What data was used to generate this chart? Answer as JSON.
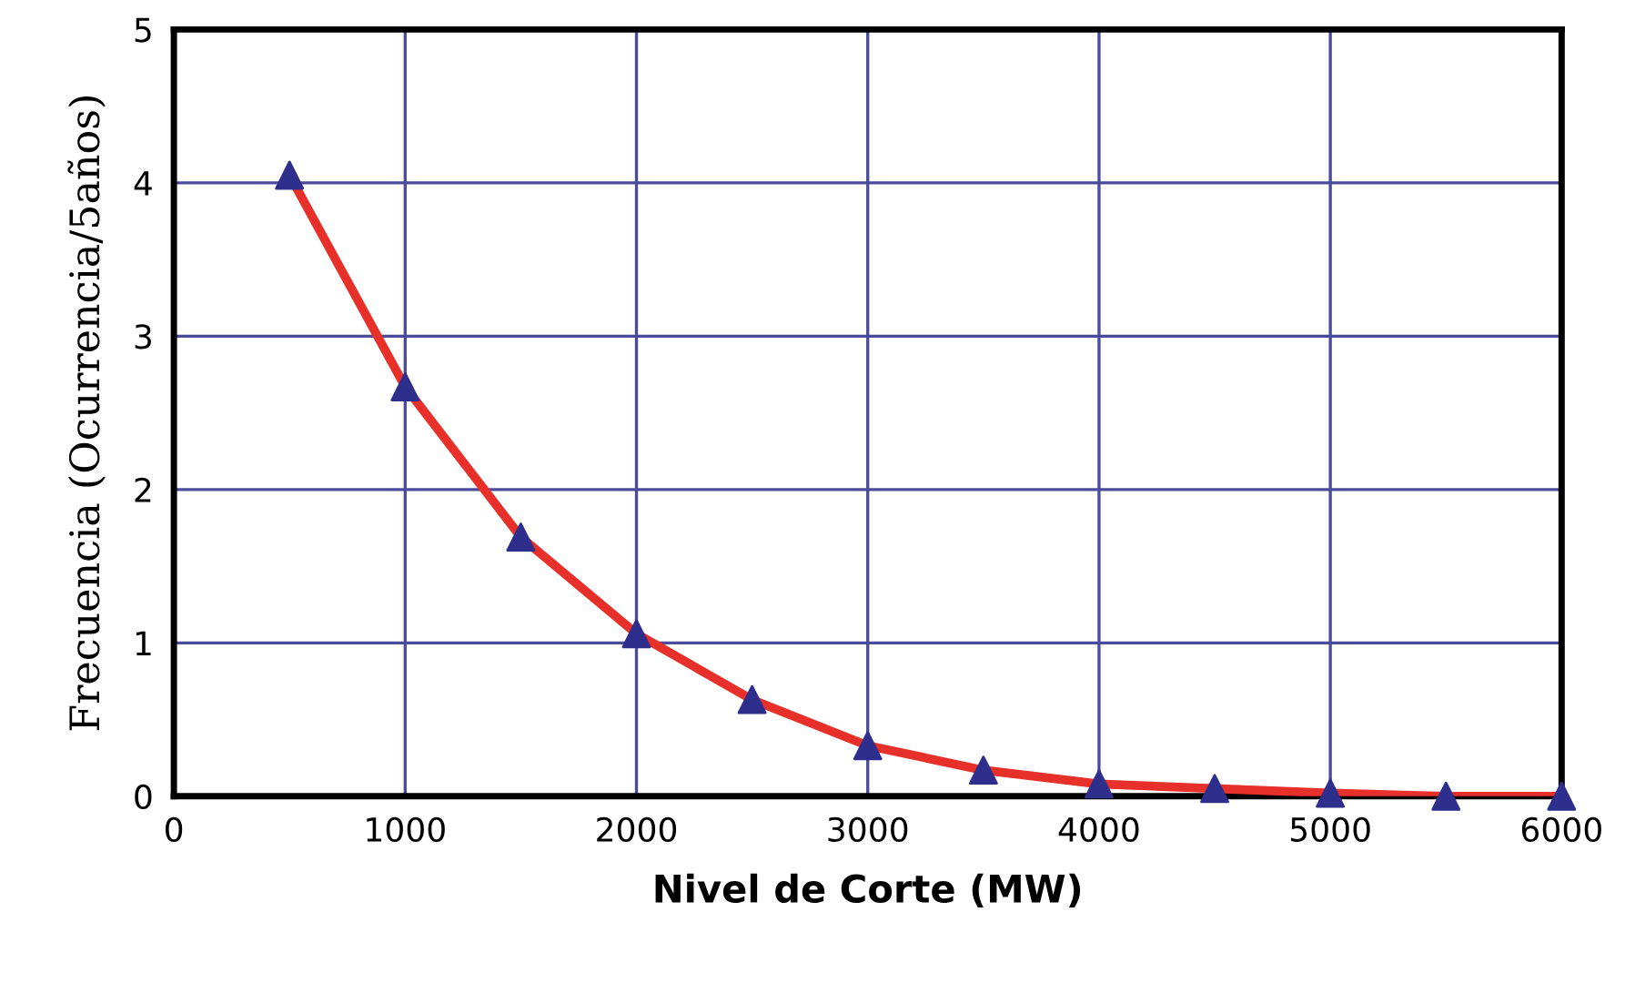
{
  "chart_data": {
    "type": "line",
    "xlabel": "Nivel de Corte (MW)",
    "ylabel": "Frecuencia (Ocurrencia/5años)",
    "x": [
      500,
      1000,
      1500,
      2000,
      2500,
      3000,
      3500,
      4000,
      4500,
      5000,
      5500,
      6000
    ],
    "series": [
      {
        "color": "#e8302a",
        "marker": "none",
        "values": [
          4.05,
          2.67,
          1.69,
          1.06,
          0.63,
          0.33,
          0.17,
          0.08,
          0.05,
          0.02,
          0,
          0
        ]
      },
      {
        "type": "scatter",
        "color": "#2e2e8c",
        "marker": "triangle",
        "values": [
          4.05,
          2.67,
          1.69,
          1.06,
          0.63,
          0.33,
          0.17,
          0.08,
          0.05,
          0.02,
          0,
          0
        ]
      }
    ],
    "xlim": [
      0,
      6000
    ],
    "ylim": [
      0,
      5
    ],
    "xticks": [
      0,
      1000,
      2000,
      3000,
      4000,
      5000,
      6000
    ],
    "yticks": [
      0,
      1,
      2,
      3,
      4,
      5
    ],
    "grid": true,
    "legend": false
  }
}
